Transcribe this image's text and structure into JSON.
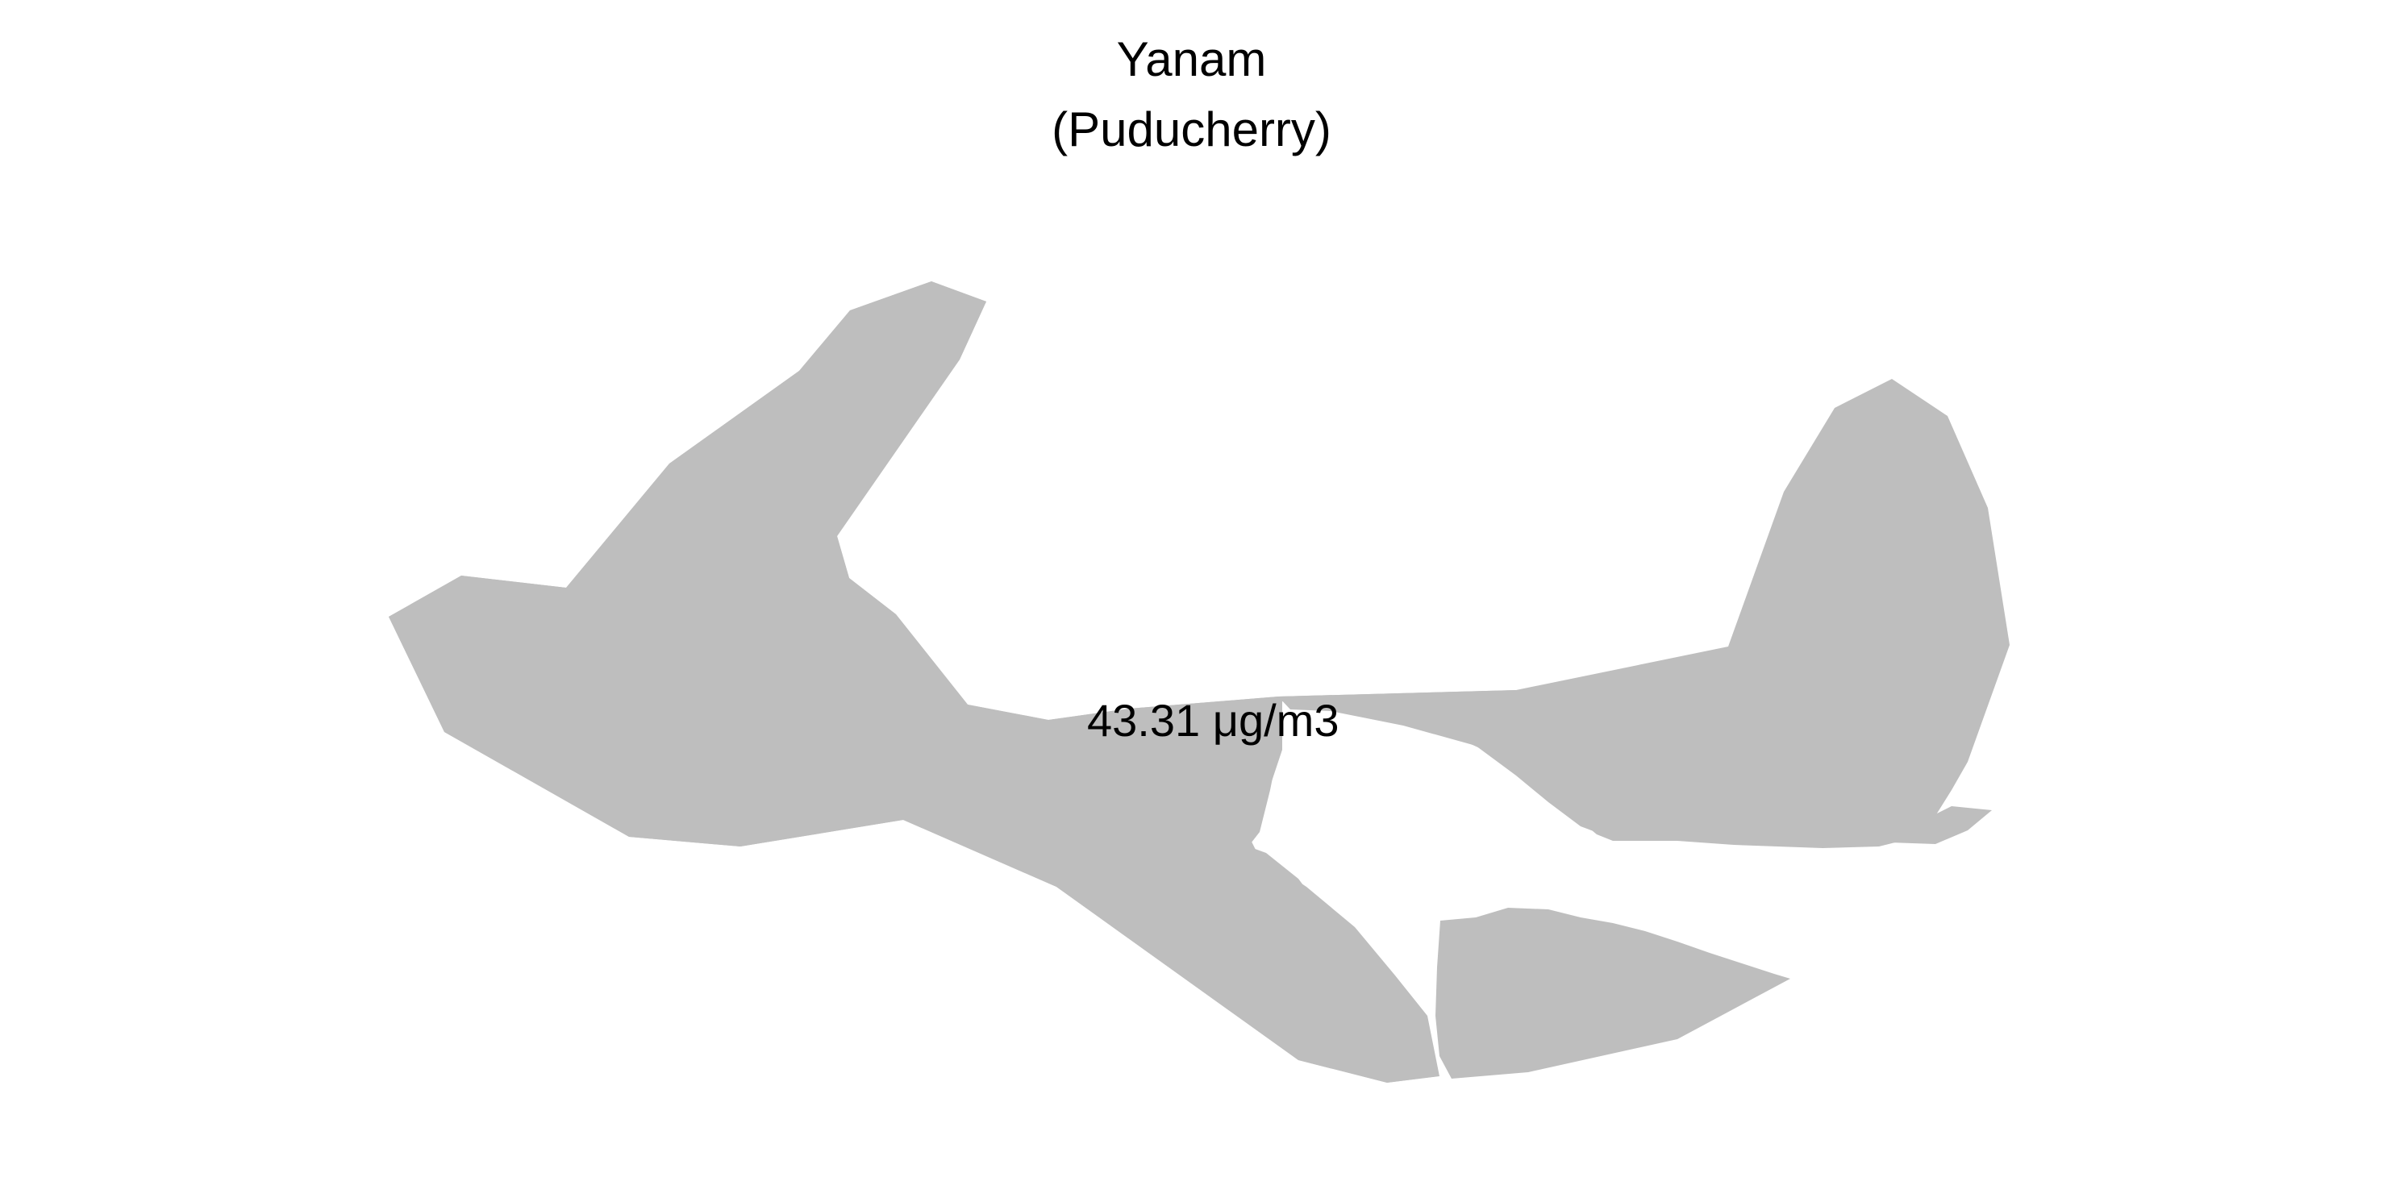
{
  "map": {
    "title": "Yanam",
    "subtitle": "(Puducherry)",
    "value_label": "43.31 μg/m3",
    "region_fill": "#bebebe",
    "background": "#ffffff"
  }
}
